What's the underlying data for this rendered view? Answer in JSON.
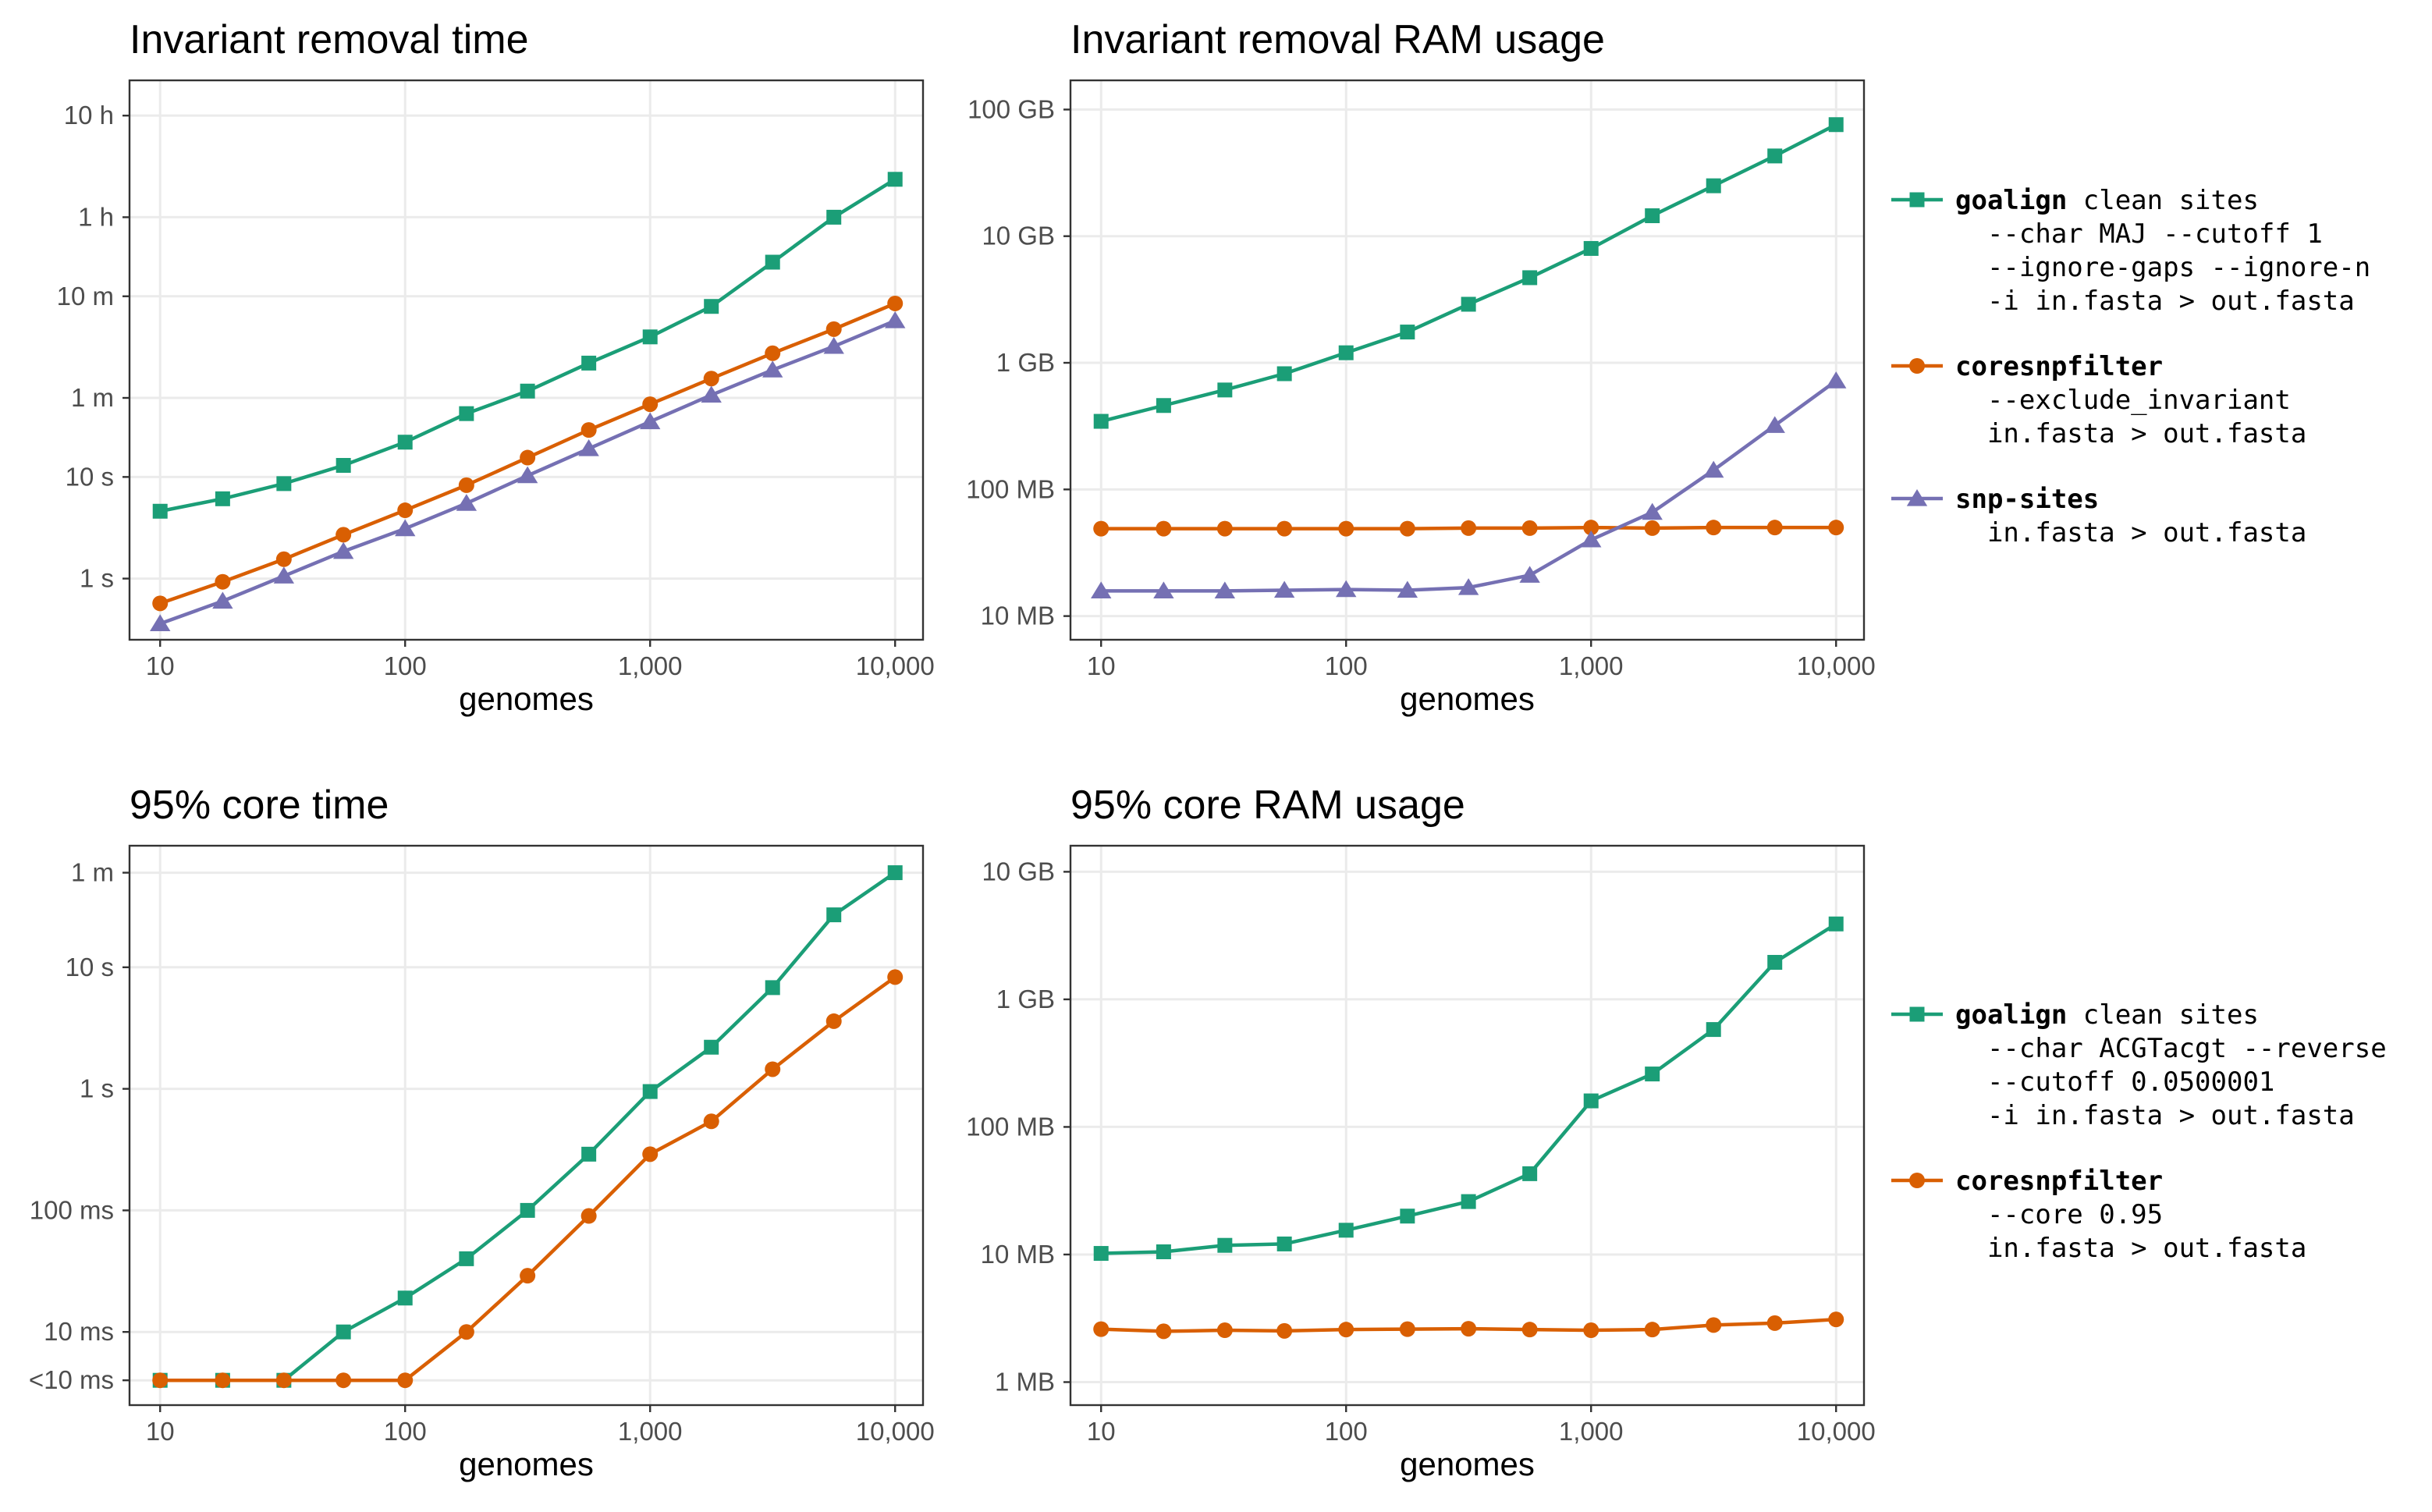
{
  "colors": {
    "goalign": "#1b9e77",
    "coresnpfilter": "#d95f02",
    "snp_sites": "#7570b3",
    "grid": "#ebebeb",
    "frame": "#333333"
  },
  "legends": [
    {
      "entries": [
        {
          "series": "goalign",
          "marker": "square",
          "name": "goalign",
          "lines": [
            " clean sites",
            "  --char MAJ --cutoff 1",
            "  --ignore-gaps --ignore-n",
            "  -i in.fasta > out.fasta"
          ]
        },
        {
          "series": "coresnpfilter",
          "marker": "circle",
          "name": "coresnpfilter",
          "lines": [
            "",
            "  --exclude_invariant",
            "  in.fasta > out.fasta"
          ]
        },
        {
          "series": "snp_sites",
          "marker": "triangle",
          "name": "snp-sites",
          "lines": [
            "",
            "  in.fasta > out.fasta"
          ]
        }
      ]
    },
    {
      "entries": [
        {
          "series": "goalign",
          "marker": "square",
          "name": "goalign",
          "lines": [
            " clean sites",
            "  --char ACGTacgt --reverse",
            "  --cutoff 0.0500001",
            "  -i in.fasta > out.fasta"
          ]
        },
        {
          "series": "coresnpfilter",
          "marker": "circle",
          "name": "coresnpfilter",
          "lines": [
            "",
            "  --core 0.95",
            "  in.fasta > out.fasta"
          ]
        }
      ]
    }
  ],
  "chart_data": [
    {
      "type": "line",
      "title": "Invariant removal time",
      "xlabel": "genomes",
      "ylabel": "",
      "x_scale": "log",
      "y_scale": "log",
      "x": [
        10,
        18,
        32,
        56,
        100,
        178,
        316,
        562,
        1000,
        1778,
        3162,
        5623,
        10000
      ],
      "x_ticks": [
        {
          "v": 10,
          "label": "10"
        },
        {
          "v": 100,
          "label": "100"
        },
        {
          "v": 1000,
          "label": "1,000"
        },
        {
          "v": 10000,
          "label": "10,000"
        }
      ],
      "x_lim": [
        7.5,
        13000
      ],
      "y_ticks": [
        {
          "v": 1,
          "label": "1 s"
        },
        {
          "v": 10,
          "label": "10 s"
        },
        {
          "v": 60,
          "label": "1 m"
        },
        {
          "v": 600,
          "label": "10 m"
        },
        {
          "v": 3600,
          "label": "1 h"
        },
        {
          "v": 36000,
          "label": "10 h"
        }
      ],
      "y_lim": [
        0.25,
        80000
      ],
      "series": [
        {
          "name": "goalign",
          "key": "goalign",
          "marker": "square",
          "values": [
            4.6,
            6.1,
            8.6,
            13,
            22,
            42,
            70,
            132,
            239,
            477,
            1300,
            3600,
            8500
          ]
        },
        {
          "name": "coresnpfilter",
          "key": "coresnpfilter",
          "marker": "circle",
          "values": [
            0.57,
            0.93,
            1.55,
            2.7,
            4.7,
            8.3,
            15.5,
            29,
            52,
            93,
            165,
            285,
            510
          ]
        },
        {
          "name": "snp-sites",
          "key": "snp_sites",
          "marker": "triangle",
          "values": [
            0.36,
            0.6,
            1.06,
            1.85,
            3.1,
            5.5,
            10.3,
            19,
            35,
            64,
            113,
            193,
            345
          ]
        }
      ]
    },
    {
      "type": "line",
      "title": "Invariant removal RAM usage",
      "xlabel": "genomes",
      "ylabel": "",
      "x_scale": "log",
      "y_scale": "log",
      "x": [
        10,
        18,
        32,
        56,
        100,
        178,
        316,
        562,
        1000,
        1778,
        3162,
        5623,
        10000
      ],
      "x_ticks": [
        {
          "v": 10,
          "label": "10"
        },
        {
          "v": 100,
          "label": "100"
        },
        {
          "v": 1000,
          "label": "1,000"
        },
        {
          "v": 10000,
          "label": "10,000"
        }
      ],
      "x_lim": [
        7.5,
        13000
      ],
      "y_ticks": [
        {
          "v": 10,
          "label": "10 MB"
        },
        {
          "v": 100,
          "label": "100 MB"
        },
        {
          "v": 1000,
          "label": "1 GB"
        },
        {
          "v": 10000,
          "label": "10 GB"
        },
        {
          "v": 100000,
          "label": "100 GB"
        }
      ],
      "y_lim": [
        6.5,
        170000
      ],
      "series": [
        {
          "name": "goalign",
          "key": "goalign",
          "marker": "square",
          "values": [
            345,
            460,
            610,
            820,
            1200,
            1750,
            2900,
            4700,
            8000,
            14500,
            25000,
            43000,
            76000
          ]
        },
        {
          "name": "coresnpfilter",
          "key": "coresnpfilter",
          "marker": "circle",
          "values": [
            49,
            49,
            49,
            49,
            49,
            49,
            49.5,
            49.5,
            50,
            49.5,
            50,
            50,
            50
          ]
        },
        {
          "name": "snp-sites",
          "key": "snp_sites",
          "marker": "triangle",
          "values": [
            15.8,
            15.8,
            15.8,
            16,
            16.2,
            16,
            16.8,
            21,
            40,
            66,
            142,
            320,
            720
          ]
        }
      ]
    },
    {
      "type": "line",
      "title": "95% core time",
      "xlabel": "genomes",
      "ylabel": "",
      "x_scale": "log",
      "y_scale": "log",
      "x": [
        10,
        18,
        32,
        56,
        100,
        178,
        316,
        562,
        1000,
        1778,
        3162,
        5623,
        10000
      ],
      "x_ticks": [
        {
          "v": 10,
          "label": "10"
        },
        {
          "v": 100,
          "label": "100"
        },
        {
          "v": 1000,
          "label": "1,000"
        },
        {
          "v": 10000,
          "label": "10,000"
        }
      ],
      "x_lim": [
        7.5,
        13000
      ],
      "y_ticks": [
        {
          "v": 0.004,
          "label": "<10 ms"
        },
        {
          "v": 0.01,
          "label": "10 ms"
        },
        {
          "v": 0.1,
          "label": "100 ms"
        },
        {
          "v": 1,
          "label": "1 s"
        },
        {
          "v": 10,
          "label": "10 s"
        },
        {
          "v": 60,
          "label": "1 m"
        }
      ],
      "y_lim": [
        0.0025,
        100
      ],
      "series": [
        {
          "name": "goalign",
          "key": "goalign",
          "marker": "square",
          "values": [
            0.004,
            0.004,
            0.004,
            0.01,
            0.019,
            0.04,
            0.1,
            0.29,
            0.95,
            2.2,
            6.8,
            27,
            60
          ]
        },
        {
          "name": "coresnpfilter",
          "key": "coresnpfilter",
          "marker": "circle",
          "values": [
            0.004,
            0.004,
            0.004,
            0.004,
            0.004,
            0.01,
            0.029,
            0.09,
            0.29,
            0.54,
            1.45,
            3.6,
            8.3
          ]
        }
      ]
    },
    {
      "type": "line",
      "title": "95% core RAM usage",
      "xlabel": "genomes",
      "ylabel": "",
      "x_scale": "log",
      "y_scale": "log",
      "x": [
        10,
        18,
        32,
        56,
        100,
        178,
        316,
        562,
        1000,
        1778,
        3162,
        5623,
        10000
      ],
      "x_ticks": [
        {
          "v": 10,
          "label": "10"
        },
        {
          "v": 100,
          "label": "100"
        },
        {
          "v": 1000,
          "label": "1,000"
        },
        {
          "v": 10000,
          "label": "10,000"
        }
      ],
      "x_lim": [
        7.5,
        13000
      ],
      "y_ticks": [
        {
          "v": 1,
          "label": "1 MB"
        },
        {
          "v": 10,
          "label": "10 MB"
        },
        {
          "v": 100,
          "label": "100 MB"
        },
        {
          "v": 1000,
          "label": "1 GB"
        },
        {
          "v": 10000,
          "label": "10 GB"
        }
      ],
      "y_lim": [
        0.66,
        16000
      ],
      "series": [
        {
          "name": "goalign",
          "key": "goalign",
          "marker": "square",
          "values": [
            10.2,
            10.5,
            11.8,
            12.1,
            15.5,
            20,
            26,
            43,
            160,
            260,
            580,
            1950,
            3900
          ]
        },
        {
          "name": "coresnpfilter",
          "key": "coresnpfilter",
          "marker": "circle",
          "values": [
            2.6,
            2.5,
            2.55,
            2.52,
            2.58,
            2.6,
            2.62,
            2.58,
            2.55,
            2.58,
            2.8,
            2.9,
            3.1
          ]
        }
      ]
    }
  ]
}
